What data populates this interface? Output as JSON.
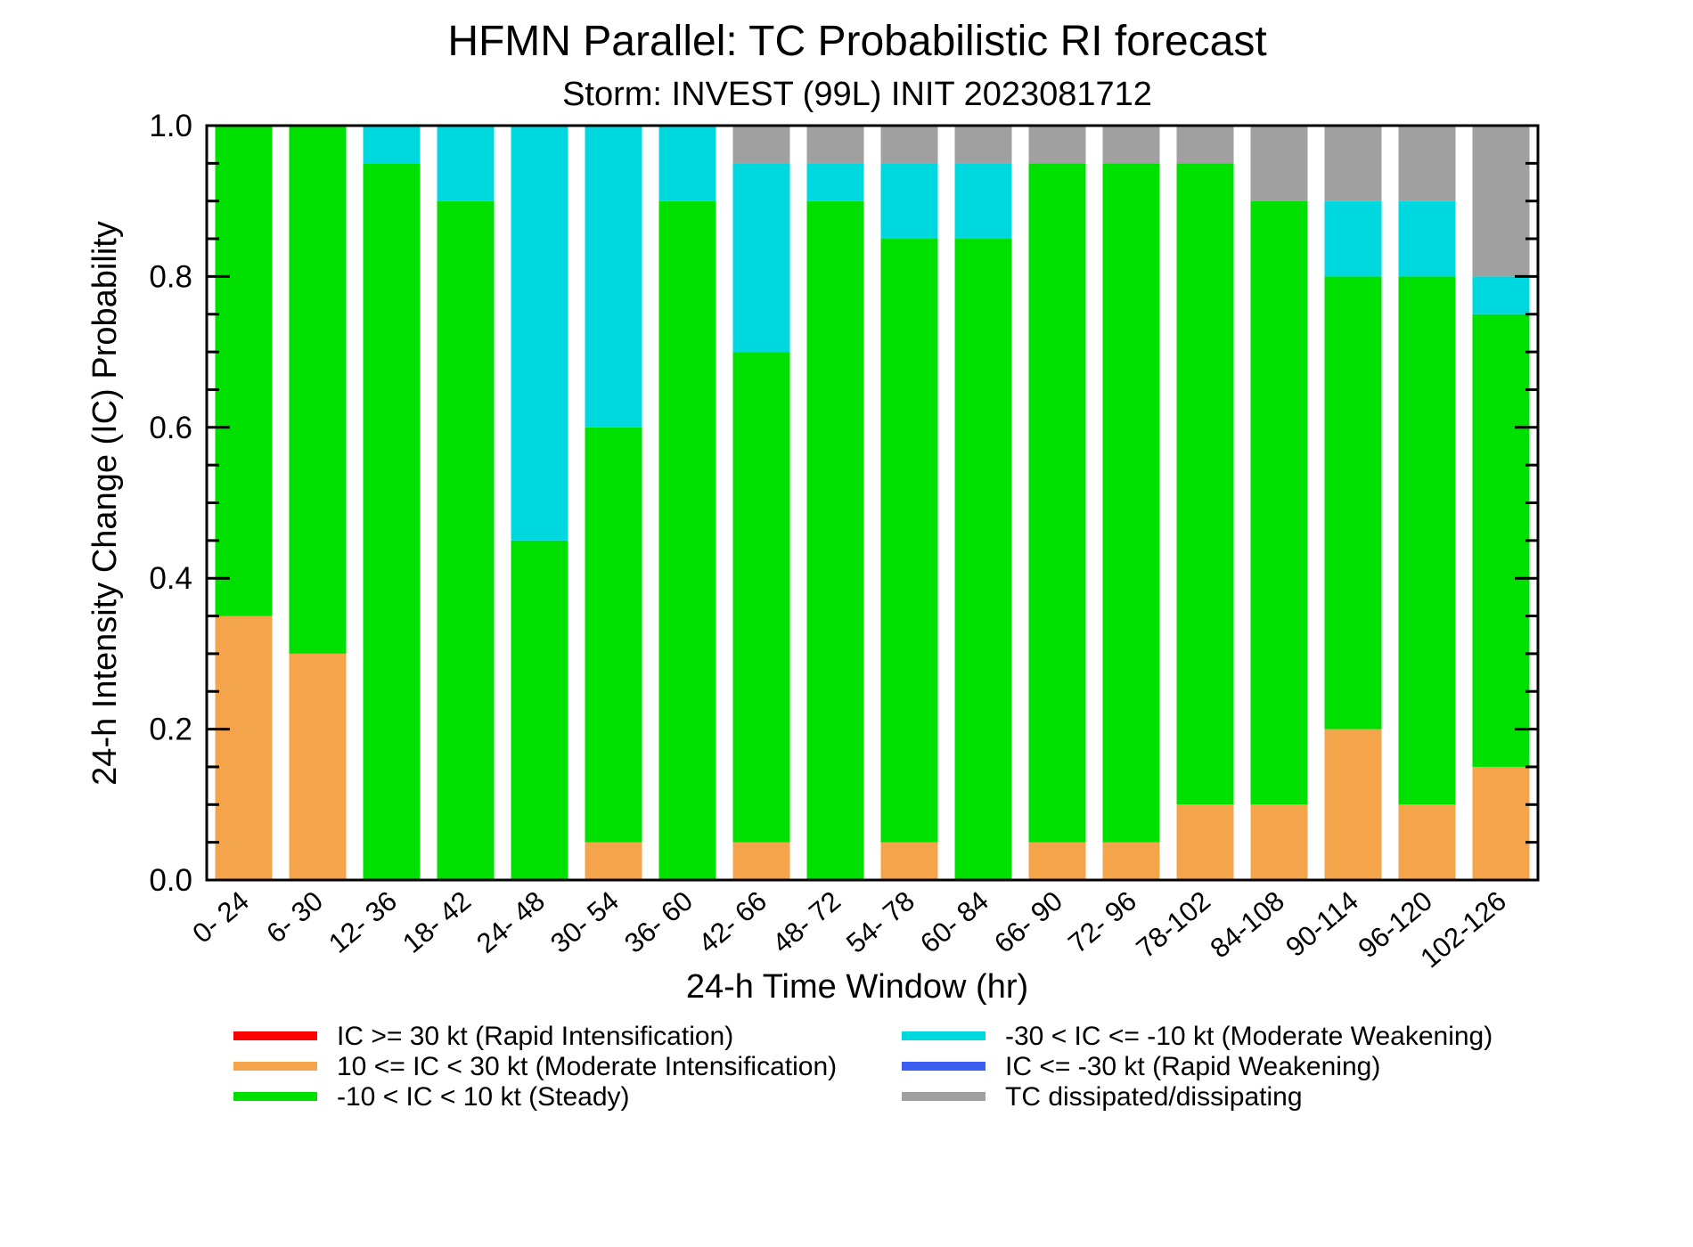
{
  "chart_data": {
    "type": "bar",
    "stacked": true,
    "title": "HFMN Parallel: TC Probabilistic RI forecast",
    "subtitle": "Storm: INVEST (99L) INIT 2023081712",
    "xlabel": "24-h Time Window (hr)",
    "ylabel": "24-h Intensity Change (IC) Probability",
    "ylim": [
      0,
      1
    ],
    "yticks": [
      "0.0",
      "0.2",
      "0.4",
      "0.6",
      "0.8",
      "1.0"
    ],
    "categories": [
      "0- 24",
      "6- 30",
      "12- 36",
      "18- 42",
      "24- 48",
      "30- 54",
      "36- 60",
      "42- 66",
      "48- 72",
      "54- 78",
      "60- 84",
      "66- 90",
      "72- 96",
      "78-102",
      "84-108",
      "90-114",
      "96-120",
      "102-126"
    ],
    "series": [
      {
        "name": "IC >= 30 kt (Rapid Intensification)",
        "color": "#ff0000",
        "values": [
          0,
          0,
          0,
          0,
          0,
          0,
          0,
          0,
          0,
          0,
          0,
          0,
          0,
          0,
          0,
          0,
          0,
          0
        ]
      },
      {
        "name": "10 <= IC < 30 kt (Moderate Intensification)",
        "color": "#f4a54c",
        "values": [
          0.35,
          0.3,
          0,
          0,
          0,
          0.05,
          0,
          0.05,
          0,
          0.05,
          0,
          0.05,
          0.05,
          0.1,
          0.1,
          0.2,
          0.1,
          0.15
        ]
      },
      {
        "name": "-10 < IC < 10 kt (Steady)",
        "color": "#00e000",
        "values": [
          0.65,
          0.7,
          0.95,
          0.9,
          0.45,
          0.55,
          0.9,
          0.65,
          0.9,
          0.8,
          0.85,
          0.9,
          0.9,
          0.85,
          0.8,
          0.6,
          0.7,
          0.6
        ]
      },
      {
        "name": "-30 < IC <= -10 kt (Moderate Weakening)",
        "color": "#00d8e0",
        "values": [
          0,
          0,
          0.05,
          0.1,
          0.55,
          0.4,
          0.1,
          0.25,
          0.05,
          0.1,
          0.1,
          0,
          0,
          0,
          0,
          0.1,
          0.1,
          0.05
        ]
      },
      {
        "name": "IC <= -30 kt (Rapid Weakening)",
        "color": "#3a5ef0",
        "values": [
          0,
          0,
          0,
          0,
          0,
          0,
          0,
          0,
          0,
          0,
          0,
          0,
          0,
          0,
          0,
          0,
          0,
          0
        ]
      },
      {
        "name": "TC dissipated/dissipating",
        "color": "#a0a0a0",
        "values": [
          0,
          0,
          0,
          0,
          0,
          0,
          0,
          0.05,
          0.05,
          0.05,
          0.05,
          0.05,
          0.05,
          0.05,
          0.1,
          0.1,
          0.1,
          0.2
        ]
      }
    ],
    "legend": {
      "placement": "bottom",
      "left_column": [
        "IC >= 30 kt (Rapid Intensification)",
        "10 <= IC < 30 kt (Moderate Intensification)",
        "-10 < IC < 10 kt (Steady)"
      ],
      "right_column": [
        "-30 < IC <= -10 kt (Moderate Weakening)",
        "IC <= -30 kt (Rapid Weakening)",
        "TC dissipated/dissipating"
      ]
    },
    "grid": false
  }
}
